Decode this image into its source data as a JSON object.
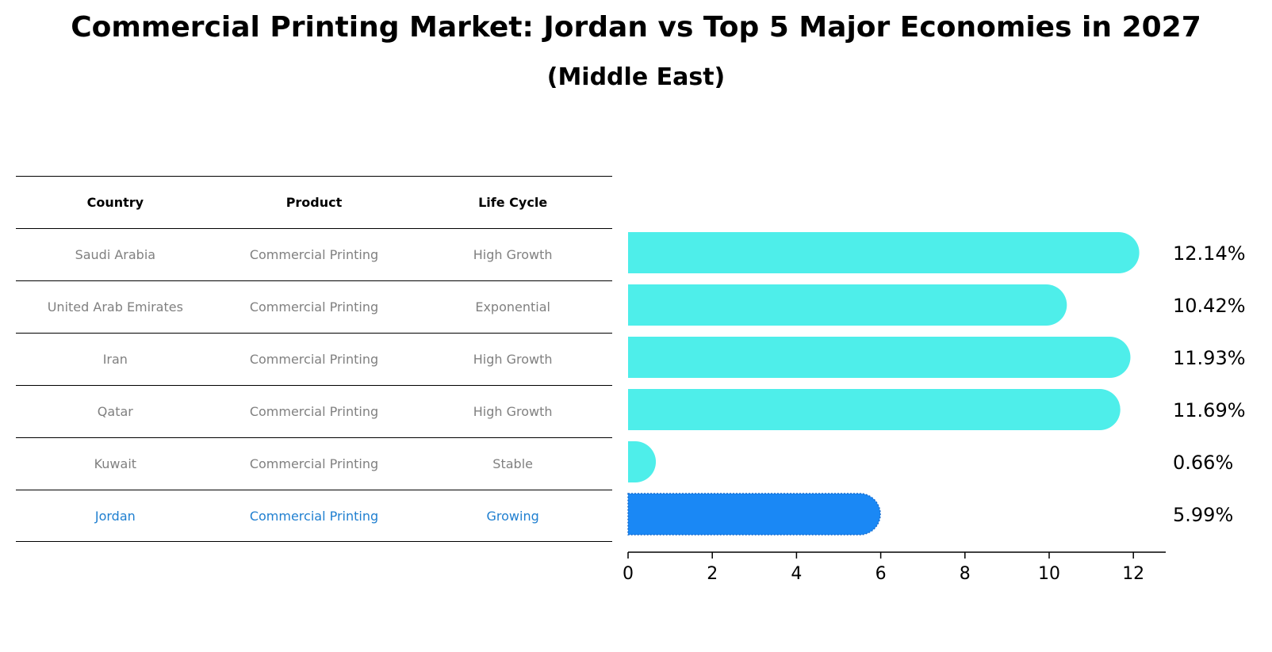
{
  "chart_data": {
    "type": "bar",
    "orientation": "horizontal",
    "title": "Commercial Printing Market: Jordan vs Top 5 Major Economies in 2027",
    "subtitle": "(Middle East)",
    "table_headers": [
      "Country",
      "Product",
      "Life Cycle"
    ],
    "rows": [
      {
        "country": "Saudi Arabia",
        "product": "Commercial Printing",
        "life_cycle": "High Growth",
        "value": 12.14,
        "label": "12.14%"
      },
      {
        "country": "United Arab Emirates",
        "product": "Commercial Printing",
        "life_cycle": "Exponential",
        "value": 10.42,
        "label": "10.42%"
      },
      {
        "country": "Iran",
        "product": "Commercial Printing",
        "life_cycle": "High Growth",
        "value": 11.93,
        "label": "11.93%"
      },
      {
        "country": "Qatar",
        "product": "Commercial Printing",
        "life_cycle": "High Growth",
        "value": 11.69,
        "label": "11.69%"
      },
      {
        "country": "Kuwait",
        "product": "Commercial Printing",
        "life_cycle": "Stable",
        "value": 0.66,
        "label": "0.66%"
      },
      {
        "country": "Jordan",
        "product": "Commercial Printing",
        "life_cycle": "Growing",
        "value": 5.99,
        "label": "5.99%",
        "highlight": true
      }
    ],
    "x_ticks": [
      "0",
      "2",
      "4",
      "6",
      "8",
      "10",
      "12"
    ],
    "xlim": [
      0,
      12.8
    ],
    "colors": {
      "bar": "#4eeeea",
      "highlight_bar": "#1a88f5",
      "highlight_text": "#1f7fd0",
      "text_muted": "#808080"
    }
  }
}
